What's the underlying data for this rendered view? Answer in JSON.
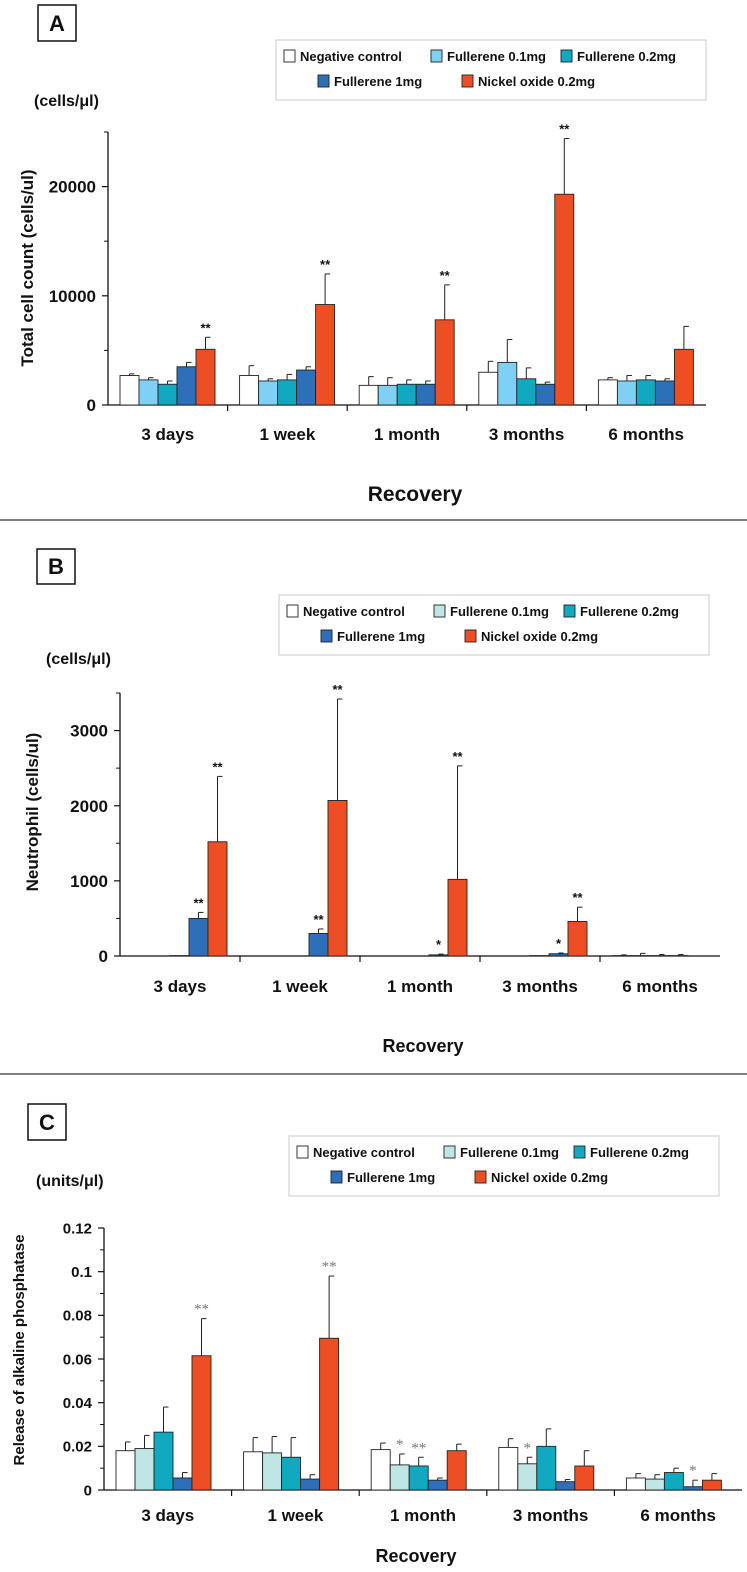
{
  "colors": {
    "Negative control": "#ffffff",
    "Fullerene 0.1mg light": "#7fd0f5",
    "Fullerene 0.1mg pale": "#bfe6e4",
    "Fullerene 0.2mg": "#11a9c0",
    "Fullerene 1mg": "#2d6fb8",
    "Nickel oxide 0.2mg": "#ee4e24",
    "axis": "#111111"
  },
  "chart_data": [
    {
      "type": "bar",
      "panel_label": "A",
      "unit_label": "(cells/μl)",
      "ylabel": "Total cell count  (cells/ul)",
      "xlabel": "Recovery",
      "categories": [
        "3 days",
        "1 week",
        "1 month",
        "3 months",
        "6 months"
      ],
      "ylim": [
        0,
        25000
      ],
      "yticks": [
        "0",
        "10000",
        "20000"
      ],
      "ytick_values": [
        0,
        10000,
        20000
      ],
      "legend_rows": [
        [
          "Negative control",
          "Fullerene 0.1mg",
          "Fullerene 0.2mg"
        ],
        [
          "Fullerene 1mg",
          "Nickel oxide 0.2mg"
        ]
      ],
      "series": [
        {
          "name": "Negative control",
          "color_key": "Negative control",
          "values": [
            2700,
            2700,
            1800,
            3000,
            2300
          ],
          "err": [
            150,
            900,
            800,
            1000,
            200
          ]
        },
        {
          "name": "Fullerene 0.1mg",
          "color_key": "Fullerene 0.1mg light",
          "values": [
            2300,
            2200,
            1800,
            3900,
            2200
          ],
          "err": [
            200,
            200,
            700,
            2100,
            500
          ]
        },
        {
          "name": "Fullerene 0.2mg",
          "color_key": "Fullerene 0.2mg",
          "values": [
            1900,
            2300,
            1900,
            2400,
            2300
          ],
          "err": [
            300,
            500,
            400,
            1000,
            400
          ]
        },
        {
          "name": "Fullerene 1mg",
          "color_key": "Fullerene 1mg",
          "values": [
            3500,
            3200,
            1900,
            1900,
            2200
          ],
          "err": [
            400,
            300,
            300,
            200,
            200
          ]
        },
        {
          "name": "Nickel oxide 0.2mg",
          "color_key": "Nickel oxide 0.2mg",
          "values": [
            5100,
            9200,
            7800,
            19300,
            5100
          ],
          "err": [
            1100,
            2800,
            3200,
            5100,
            2100
          ]
        }
      ],
      "annotations": [
        {
          "category": 0,
          "series": 4,
          "text": "**"
        },
        {
          "category": 1,
          "series": 4,
          "text": "**"
        },
        {
          "category": 2,
          "series": 4,
          "text": "**"
        },
        {
          "category": 3,
          "series": 4,
          "text": "**"
        }
      ]
    },
    {
      "type": "bar",
      "panel_label": "B",
      "unit_label": "(cells/μl)",
      "ylabel": "Neutrophil  (cells/ul)",
      "xlabel": "Recovery",
      "categories": [
        "3 days",
        "1 week",
        "1 month",
        "3 months",
        "6 months"
      ],
      "ylim": [
        0,
        3500
      ],
      "yticks": [
        "0",
        "1000",
        "2000",
        "3000"
      ],
      "ytick_values": [
        0,
        1000,
        2000,
        3000
      ],
      "legend_rows": [
        [
          "Negative control",
          "Fullerene 0.1mg",
          "Fullerene 0.2mg"
        ],
        [
          "Fullerene 1mg",
          "Nickel oxide 0.2mg"
        ]
      ],
      "series": [
        {
          "name": "Negative control",
          "color_key": "Negative control",
          "values": [
            0,
            0,
            0,
            0,
            5
          ],
          "err": [
            0,
            0,
            0,
            0,
            10
          ]
        },
        {
          "name": "Fullerene 0.1mg",
          "color_key": "Fullerene 0.1mg pale",
          "values": [
            0,
            0,
            0,
            0,
            5
          ],
          "err": [
            0,
            0,
            0,
            0,
            30
          ]
        },
        {
          "name": "Fullerene 0.2mg",
          "color_key": "Fullerene 0.2mg",
          "values": [
            5,
            0,
            0,
            5,
            5
          ],
          "err": [
            0,
            0,
            0,
            0,
            15
          ]
        },
        {
          "name": "Fullerene 1mg",
          "color_key": "Fullerene 1mg",
          "values": [
            500,
            300,
            15,
            30,
            5
          ],
          "err": [
            80,
            60,
            10,
            10,
            15
          ]
        },
        {
          "name": "Nickel oxide 0.2mg",
          "color_key": "Nickel oxide 0.2mg",
          "values": [
            1520,
            2070,
            1020,
            460,
            0
          ],
          "err": [
            870,
            1350,
            1510,
            190,
            0
          ]
        }
      ],
      "annotations": [
        {
          "category": 0,
          "series": 3,
          "text": "**"
        },
        {
          "category": 0,
          "series": 4,
          "text": "**"
        },
        {
          "category": 1,
          "series": 3,
          "text": "**"
        },
        {
          "category": 1,
          "series": 4,
          "text": "**"
        },
        {
          "category": 2,
          "series": 3,
          "text": "*"
        },
        {
          "category": 2,
          "series": 4,
          "text": "**"
        },
        {
          "category": 3,
          "series": 3,
          "text": "*"
        },
        {
          "category": 3,
          "series": 4,
          "text": "**"
        }
      ]
    },
    {
      "type": "bar",
      "panel_label": "C",
      "unit_label": "(units/μl)",
      "ylabel": "Release of alkaline phosphatase",
      "xlabel": "Recovery",
      "categories": [
        "3 days",
        "1 week",
        "1 month",
        "3 months",
        "6 months"
      ],
      "ylim": [
        0,
        0.12
      ],
      "yticks": [
        "0",
        "0.02",
        "0.04",
        "0.06",
        "0.08",
        "0.1",
        "0.12"
      ],
      "ytick_values": [
        0,
        0.02,
        0.04,
        0.06,
        0.08,
        0.1,
        0.12
      ],
      "legend_rows": [
        [
          "Negative control",
          "Fullerene 0.1mg",
          "Fullerene 0.2mg"
        ],
        [
          "Fullerene 1mg",
          "Nickel oxide 0.2mg"
        ]
      ],
      "series": [
        {
          "name": "Negative control",
          "color_key": "Negative control",
          "values": [
            0.018,
            0.0175,
            0.0185,
            0.0195,
            0.0055
          ],
          "err": [
            0.004,
            0.0065,
            0.003,
            0.004,
            0.002
          ]
        },
        {
          "name": "Fullerene 0.1mg",
          "color_key": "Fullerene 0.1mg pale",
          "values": [
            0.019,
            0.017,
            0.0115,
            0.012,
            0.005
          ],
          "err": [
            0.006,
            0.0075,
            0.005,
            0.003,
            0.002
          ]
        },
        {
          "name": "Fullerene 0.2mg",
          "color_key": "Fullerene 0.2mg",
          "values": [
            0.0265,
            0.015,
            0.011,
            0.02,
            0.008
          ],
          "err": [
            0.0115,
            0.009,
            0.004,
            0.008,
            0.002
          ]
        },
        {
          "name": "Fullerene 1mg",
          "color_key": "Fullerene 1mg",
          "values": [
            0.0055,
            0.005,
            0.0045,
            0.0038,
            0.0015
          ],
          "err": [
            0.0025,
            0.002,
            0.001,
            0.001,
            0.003
          ]
        },
        {
          "name": "Nickel oxide 0.2mg",
          "color_key": "Nickel oxide 0.2mg",
          "values": [
            0.0615,
            0.0695,
            0.018,
            0.011,
            0.0045
          ],
          "err": [
            0.017,
            0.0285,
            0.003,
            0.007,
            0.003
          ]
        }
      ],
      "annotations": [
        {
          "category": 0,
          "series": 4,
          "text": "**"
        },
        {
          "category": 1,
          "series": 4,
          "text": "**"
        },
        {
          "category": 2,
          "series": 1,
          "text": "*"
        },
        {
          "category": 2,
          "series": 2,
          "text": "**"
        },
        {
          "category": 3,
          "series": 1,
          "text": "*"
        },
        {
          "category": 4,
          "series": 3,
          "text": "*"
        }
      ]
    }
  ]
}
